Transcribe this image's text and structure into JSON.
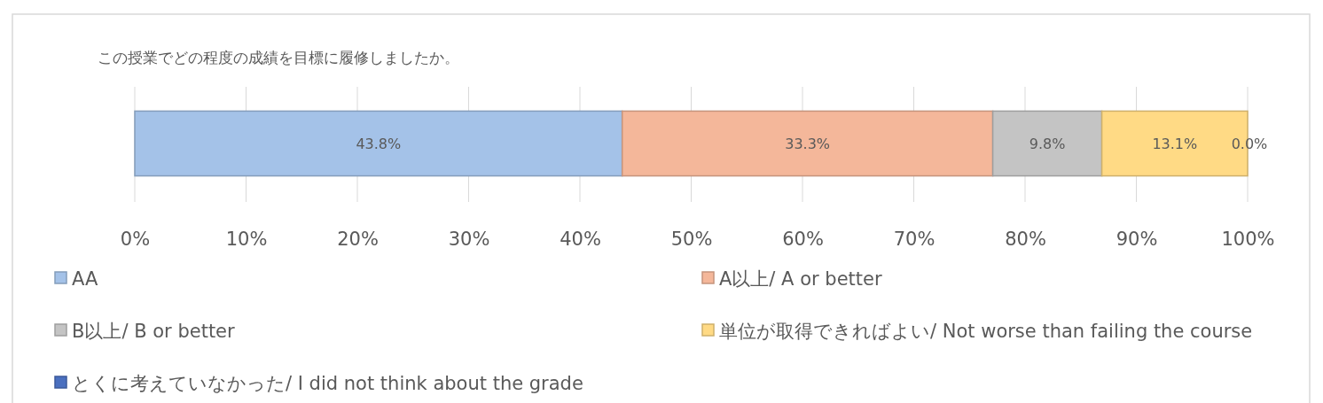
{
  "chart_data": {
    "type": "bar",
    "orientation": "horizontal",
    "stacked": true,
    "title": "この授業でどの程度の成績を目標に履修しましたか。",
    "categories": [
      null
    ],
    "series": [
      {
        "name": "AA",
        "color": "#a4c2e8",
        "values": [
          43.8
        ],
        "value_labels": [
          "43.8%"
        ]
      },
      {
        "name": "A以上/ A or better",
        "color": "#f4b79a",
        "values": [
          33.3
        ],
        "value_labels": [
          "33.3%"
        ]
      },
      {
        "name": "B以上/ B or better",
        "color": "#c4c4c4",
        "values": [
          9.8
        ],
        "value_labels": [
          "9.8%"
        ]
      },
      {
        "name": "単位が取得できればよい/ Not worse than failing the course",
        "color": "#ffda85",
        "values": [
          13.1
        ],
        "value_labels": [
          "13.1%"
        ]
      },
      {
        "name": "とくに考えていなかった/ I did not think about the grade",
        "color": "#4a6fbf",
        "values": [
          0.0
        ],
        "value_labels": [
          "0.0%"
        ]
      }
    ],
    "xlim": [
      0,
      100
    ],
    "xticks": [
      {
        "value": 0,
        "label": "0%"
      },
      {
        "value": 10,
        "label": "10%"
      },
      {
        "value": 20,
        "label": "20%"
      },
      {
        "value": 30,
        "label": "30%"
      },
      {
        "value": 40,
        "label": "40%"
      },
      {
        "value": 50,
        "label": "50%"
      },
      {
        "value": 60,
        "label": "60%"
      },
      {
        "value": 70,
        "label": "70%"
      },
      {
        "value": 80,
        "label": "80%"
      },
      {
        "value": 90,
        "label": "90%"
      },
      {
        "value": 100,
        "label": "100%"
      }
    ],
    "grid": "x",
    "legend": "bottom"
  }
}
